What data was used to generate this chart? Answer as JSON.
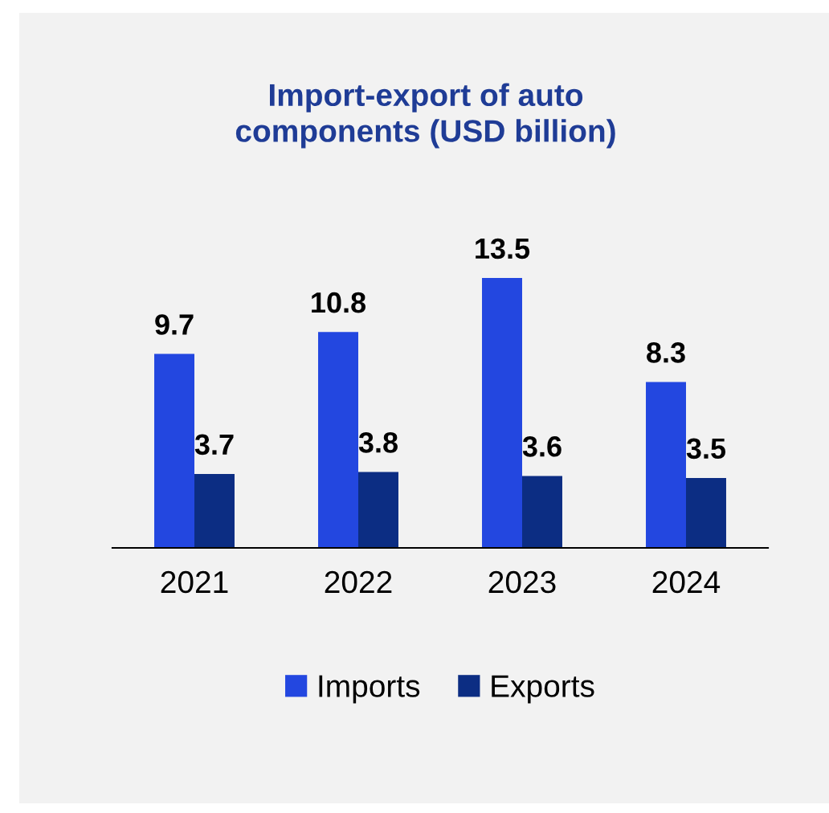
{
  "chart_data": {
    "type": "bar",
    "title": "Import-export of auto\ncomponents (USD billion)",
    "categories": [
      "2021",
      "2022",
      "2023",
      "2024"
    ],
    "series": [
      {
        "name": "Imports",
        "color": "#2347e0",
        "values": [
          9.7,
          10.8,
          13.5,
          8.3
        ]
      },
      {
        "name": "Exports",
        "color": "#0c2d83",
        "values": [
          3.7,
          3.8,
          3.6,
          3.5
        ]
      }
    ],
    "data_labels": true,
    "legend": "bottom",
    "grid": false
  }
}
